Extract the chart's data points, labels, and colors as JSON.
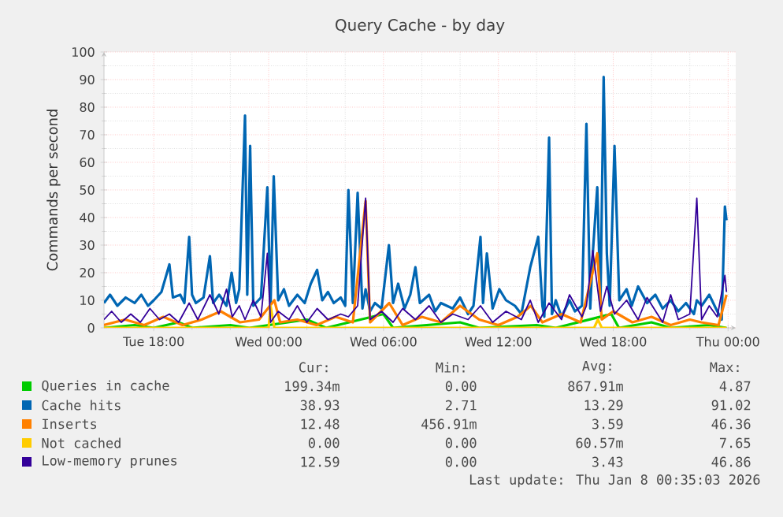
{
  "chart_data": {
    "type": "line",
    "title": "Query Cache - by day",
    "ylabel": "Commands per second",
    "xlim": [
      "2026-01-06T15:24",
      "2026-01-08T00:24"
    ],
    "ylim": [
      0,
      100
    ],
    "xticks": [
      {
        "value": "2026-01-06T18:00",
        "label": "Tue 18:00"
      },
      {
        "value": "2026-01-07T00:00",
        "label": "Wed 00:00"
      },
      {
        "value": "2026-01-07T06:00",
        "label": "Wed 06:00"
      },
      {
        "value": "2026-01-07T12:00",
        "label": "Wed 12:00"
      },
      {
        "value": "2026-01-07T18:00",
        "label": "Wed 18:00"
      },
      {
        "value": "2026-01-08T00:00",
        "label": "Thu 00:00"
      }
    ],
    "yticks": [
      0,
      10,
      20,
      30,
      40,
      50,
      60,
      70,
      80,
      90,
      100
    ],
    "grid": true,
    "legend": "bottom",
    "series": [
      {
        "name": "Queries in cache",
        "color": "#00cc00",
        "x": [
          "2026-01-06T15:24",
          "2026-01-06T17:00",
          "2026-01-06T18:00",
          "2026-01-06T19:18",
          "2026-01-06T20:00",
          "2026-01-06T22:00",
          "2026-01-06T23:00",
          "2026-01-07T02:00",
          "2026-01-07T03:00",
          "2026-01-07T06:00",
          "2026-01-07T06:30",
          "2026-01-07T10:00",
          "2026-01-07T11:00",
          "2026-01-07T14:00",
          "2026-01-07T15:00",
          "2026-01-07T17:54",
          "2026-01-07T18:18",
          "2026-01-07T20:00",
          "2026-01-07T21:00",
          "2026-01-07T23:00",
          "2026-01-07T23:55"
        ],
        "values": [
          0,
          1,
          0,
          2,
          0,
          1,
          0,
          3,
          0,
          5,
          0,
          2,
          0,
          1,
          0,
          5,
          0,
          2,
          0,
          1,
          0
        ]
      },
      {
        "name": "Cache hits",
        "color": "#0066b3",
        "x": [
          "2026-01-06T15:24",
          "2026-01-06T15:43",
          "2026-01-06T16:06",
          "2026-01-06T16:32",
          "2026-01-06T17:00",
          "2026-01-06T17:21",
          "2026-01-06T17:42",
          "2026-01-06T18:00",
          "2026-01-06T18:24",
          "2026-01-06T18:49",
          "2026-01-06T19:00",
          "2026-01-06T19:23",
          "2026-01-06T19:36",
          "2026-01-06T19:51",
          "2026-01-06T20:00",
          "2026-01-06T20:12",
          "2026-01-06T20:36",
          "2026-01-06T20:56",
          "2026-01-06T21:06",
          "2026-01-06T21:25",
          "2026-01-06T21:48",
          "2026-01-06T22:04",
          "2026-01-06T22:18",
          "2026-01-06T22:28",
          "2026-01-06T22:46",
          "2026-01-06T22:53",
          "2026-01-06T23:02",
          "2026-01-06T23:12",
          "2026-01-06T23:36",
          "2026-01-06T23:56",
          "2026-01-07T00:06",
          "2026-01-07T00:16",
          "2026-01-07T00:30",
          "2026-01-07T00:48",
          "2026-01-07T01:04",
          "2026-01-07T01:30",
          "2026-01-07T01:53",
          "2026-01-07T02:12",
          "2026-01-07T02:32",
          "2026-01-07T02:48",
          "2026-01-07T03:06",
          "2026-01-07T03:24",
          "2026-01-07T03:46",
          "2026-01-07T04:00",
          "2026-01-07T04:10",
          "2026-01-07T04:24",
          "2026-01-07T04:39",
          "2026-01-07T04:54",
          "2026-01-07T05:04",
          "2026-01-07T05:18",
          "2026-01-07T05:33",
          "2026-01-07T05:54",
          "2026-01-07T06:17",
          "2026-01-07T06:30",
          "2026-01-07T06:46",
          "2026-01-07T07:06",
          "2026-01-07T07:24",
          "2026-01-07T07:40",
          "2026-01-07T07:54",
          "2026-01-07T08:23",
          "2026-01-07T08:42",
          "2026-01-07T09:00",
          "2026-01-07T09:37",
          "2026-01-07T10:00",
          "2026-01-07T10:25",
          "2026-01-07T10:42",
          "2026-01-07T11:04",
          "2026-01-07T11:12",
          "2026-01-07T11:24",
          "2026-01-07T11:42",
          "2026-01-07T12:03",
          "2026-01-07T12:24",
          "2026-01-07T12:52",
          "2026-01-07T13:12",
          "2026-01-07T13:40",
          "2026-01-07T14:05",
          "2026-01-07T14:18",
          "2026-01-07T14:24",
          "2026-01-07T14:39",
          "2026-01-07T14:48",
          "2026-01-07T15:00",
          "2026-01-07T15:18",
          "2026-01-07T15:43",
          "2026-01-07T16:00",
          "2026-01-07T16:22",
          "2026-01-07T16:36",
          "2026-01-07T16:48",
          "2026-01-07T16:56",
          "2026-01-07T17:10",
          "2026-01-07T17:20",
          "2026-01-07T17:30",
          "2026-01-07T17:40",
          "2026-01-07T17:49",
          "2026-01-07T18:04",
          "2026-01-07T18:19",
          "2026-01-07T18:42",
          "2026-01-07T18:58",
          "2026-01-07T19:18",
          "2026-01-07T19:46",
          "2026-01-07T20:12",
          "2026-01-07T20:35",
          "2026-01-07T21:00",
          "2026-01-07T21:24",
          "2026-01-07T21:48",
          "2026-01-07T22:13",
          "2026-01-07T22:22",
          "2026-01-07T22:37",
          "2026-01-07T23:01",
          "2026-01-07T23:26",
          "2026-01-07T23:40",
          "2026-01-07T23:50",
          "2026-01-07T23:55"
        ],
        "values": [
          9,
          12,
          8,
          11,
          9,
          12,
          8,
          10,
          13,
          23,
          11,
          12,
          9,
          33,
          12,
          9,
          11,
          26,
          9,
          12,
          8,
          20,
          9,
          14,
          77,
          12,
          66,
          8,
          11,
          51,
          8,
          55,
          10,
          14,
          8,
          12,
          9,
          16,
          21,
          10,
          13,
          9,
          11,
          8,
          50,
          9,
          49,
          7,
          14,
          6,
          9,
          7,
          30,
          9,
          16,
          7,
          12,
          22,
          9,
          12,
          6,
          9,
          7,
          11,
          5,
          8,
          33,
          9,
          27,
          7,
          14,
          10,
          8,
          5,
          22,
          33,
          8,
          4,
          69,
          5,
          10,
          4,
          10,
          6,
          8,
          74,
          7,
          27,
          51,
          9,
          91,
          27,
          8,
          66,
          10,
          14,
          8,
          15,
          9,
          12,
          7,
          10,
          6,
          9,
          5,
          10,
          8,
          12,
          6,
          3,
          44,
          39
        ]
      },
      {
        "name": "Inserts",
        "color": "#ff8000",
        "x": [
          "2026-01-06T15:24",
          "2026-01-06T16:30",
          "2026-01-06T17:30",
          "2026-01-06T18:30",
          "2026-01-06T19:30",
          "2026-01-06T20:30",
          "2026-01-06T21:30",
          "2026-01-06T22:30",
          "2026-01-06T23:30",
          "2026-01-07T00:18",
          "2026-01-07T00:36",
          "2026-01-07T01:30",
          "2026-01-07T02:30",
          "2026-01-07T03:30",
          "2026-01-07T04:24",
          "2026-01-07T05:04",
          "2026-01-07T05:18",
          "2026-01-07T06:18",
          "2026-01-07T07:00",
          "2026-01-07T08:00",
          "2026-01-07T09:00",
          "2026-01-07T10:00",
          "2026-01-07T11:00",
          "2026-01-07T12:00",
          "2026-01-07T13:00",
          "2026-01-07T13:42",
          "2026-01-07T14:18",
          "2026-01-07T15:18",
          "2026-01-07T16:18",
          "2026-01-07T17:10",
          "2026-01-07T17:24",
          "2026-01-07T18:00",
          "2026-01-07T19:00",
          "2026-01-07T20:00",
          "2026-01-07T21:00",
          "2026-01-07T22:00",
          "2026-01-07T22:36",
          "2026-01-07T23:30",
          "2026-01-07T23:55"
        ],
        "values": [
          1,
          3,
          1,
          4,
          1,
          3,
          6,
          2,
          3,
          10,
          2,
          3,
          1,
          4,
          2,
          46,
          2,
          9,
          1,
          4,
          2,
          8,
          3,
          1,
          4,
          8,
          2,
          5,
          2,
          27,
          3,
          6,
          2,
          4,
          1,
          3,
          2,
          1,
          12
        ]
      },
      {
        "name": "Not cached",
        "color": "#ffcc00",
        "x": [
          "2026-01-06T15:24",
          "2026-01-07T00:00",
          "2026-01-07T00:06",
          "2026-01-07T00:18",
          "2026-01-07T17:00",
          "2026-01-07T17:12",
          "2026-01-07T17:24",
          "2026-01-07T23:55"
        ],
        "values": [
          0,
          0,
          8,
          0,
          0,
          3,
          0,
          0
        ]
      },
      {
        "name": "Low-memory prunes",
        "color": "#330099",
        "x": [
          "2026-01-06T15:24",
          "2026-01-06T15:48",
          "2026-01-06T16:18",
          "2026-01-06T16:48",
          "2026-01-06T17:18",
          "2026-01-06T17:48",
          "2026-01-06T18:18",
          "2026-01-06T18:49",
          "2026-01-06T19:18",
          "2026-01-06T19:51",
          "2026-01-06T20:18",
          "2026-01-06T20:56",
          "2026-01-06T21:24",
          "2026-01-06T21:48",
          "2026-01-06T22:06",
          "2026-01-06T22:28",
          "2026-01-06T22:46",
          "2026-01-06T23:12",
          "2026-01-06T23:36",
          "2026-01-06T23:56",
          "2026-01-07T00:06",
          "2026-01-07T00:30",
          "2026-01-07T01:04",
          "2026-01-07T01:30",
          "2026-01-07T02:00",
          "2026-01-07T02:32",
          "2026-01-07T03:06",
          "2026-01-07T03:46",
          "2026-01-07T04:10",
          "2026-01-07T04:39",
          "2026-01-07T05:04",
          "2026-01-07T05:18",
          "2026-01-07T05:54",
          "2026-01-07T06:30",
          "2026-01-07T07:00",
          "2026-01-07T07:40",
          "2026-01-07T08:23",
          "2026-01-07T09:00",
          "2026-01-07T09:37",
          "2026-01-07T10:25",
          "2026-01-07T11:04",
          "2026-01-07T11:42",
          "2026-01-07T12:24",
          "2026-01-07T13:12",
          "2026-01-07T13:40",
          "2026-01-07T14:05",
          "2026-01-07T14:39",
          "2026-01-07T15:18",
          "2026-01-07T15:43",
          "2026-01-07T16:22",
          "2026-01-07T16:36",
          "2026-01-07T16:56",
          "2026-01-07T17:20",
          "2026-01-07T17:40",
          "2026-01-07T18:04",
          "2026-01-07T18:42",
          "2026-01-07T19:18",
          "2026-01-07T19:46",
          "2026-01-07T20:35",
          "2026-01-07T21:00",
          "2026-01-07T21:24",
          "2026-01-07T22:00",
          "2026-01-07T22:22",
          "2026-01-07T22:37",
          "2026-01-07T23:01",
          "2026-01-07T23:26",
          "2026-01-07T23:50",
          "2026-01-07T23:55"
        ],
        "values": [
          3,
          6,
          2,
          5,
          2,
          7,
          3,
          5,
          2,
          9,
          3,
          12,
          5,
          14,
          4,
          8,
          3,
          10,
          4,
          27,
          2,
          6,
          3,
          8,
          2,
          7,
          3,
          5,
          4,
          8,
          47,
          3,
          6,
          2,
          7,
          3,
          8,
          2,
          5,
          3,
          8,
          2,
          6,
          3,
          10,
          2,
          9,
          3,
          12,
          4,
          8,
          28,
          6,
          15,
          5,
          10,
          3,
          11,
          2,
          12,
          3,
          5,
          47,
          3,
          8,
          4,
          19,
          13
        ]
      }
    ],
    "annotations": [
      "Cur:",
      "Min:",
      "Avg:",
      "Max:",
      "199.34m",
      "0.00",
      "867.91m",
      "4.87",
      "38.93",
      "2.71",
      "13.29",
      "91.02",
      "12.48",
      "456.91m",
      "3.59",
      "46.36",
      "0.00",
      "0.00",
      "60.57m",
      "7.65",
      "12.59",
      "0.00",
      "3.43",
      "46.86",
      "Last update: Thu Jan  8 00:35:03 2026"
    ]
  }
}
